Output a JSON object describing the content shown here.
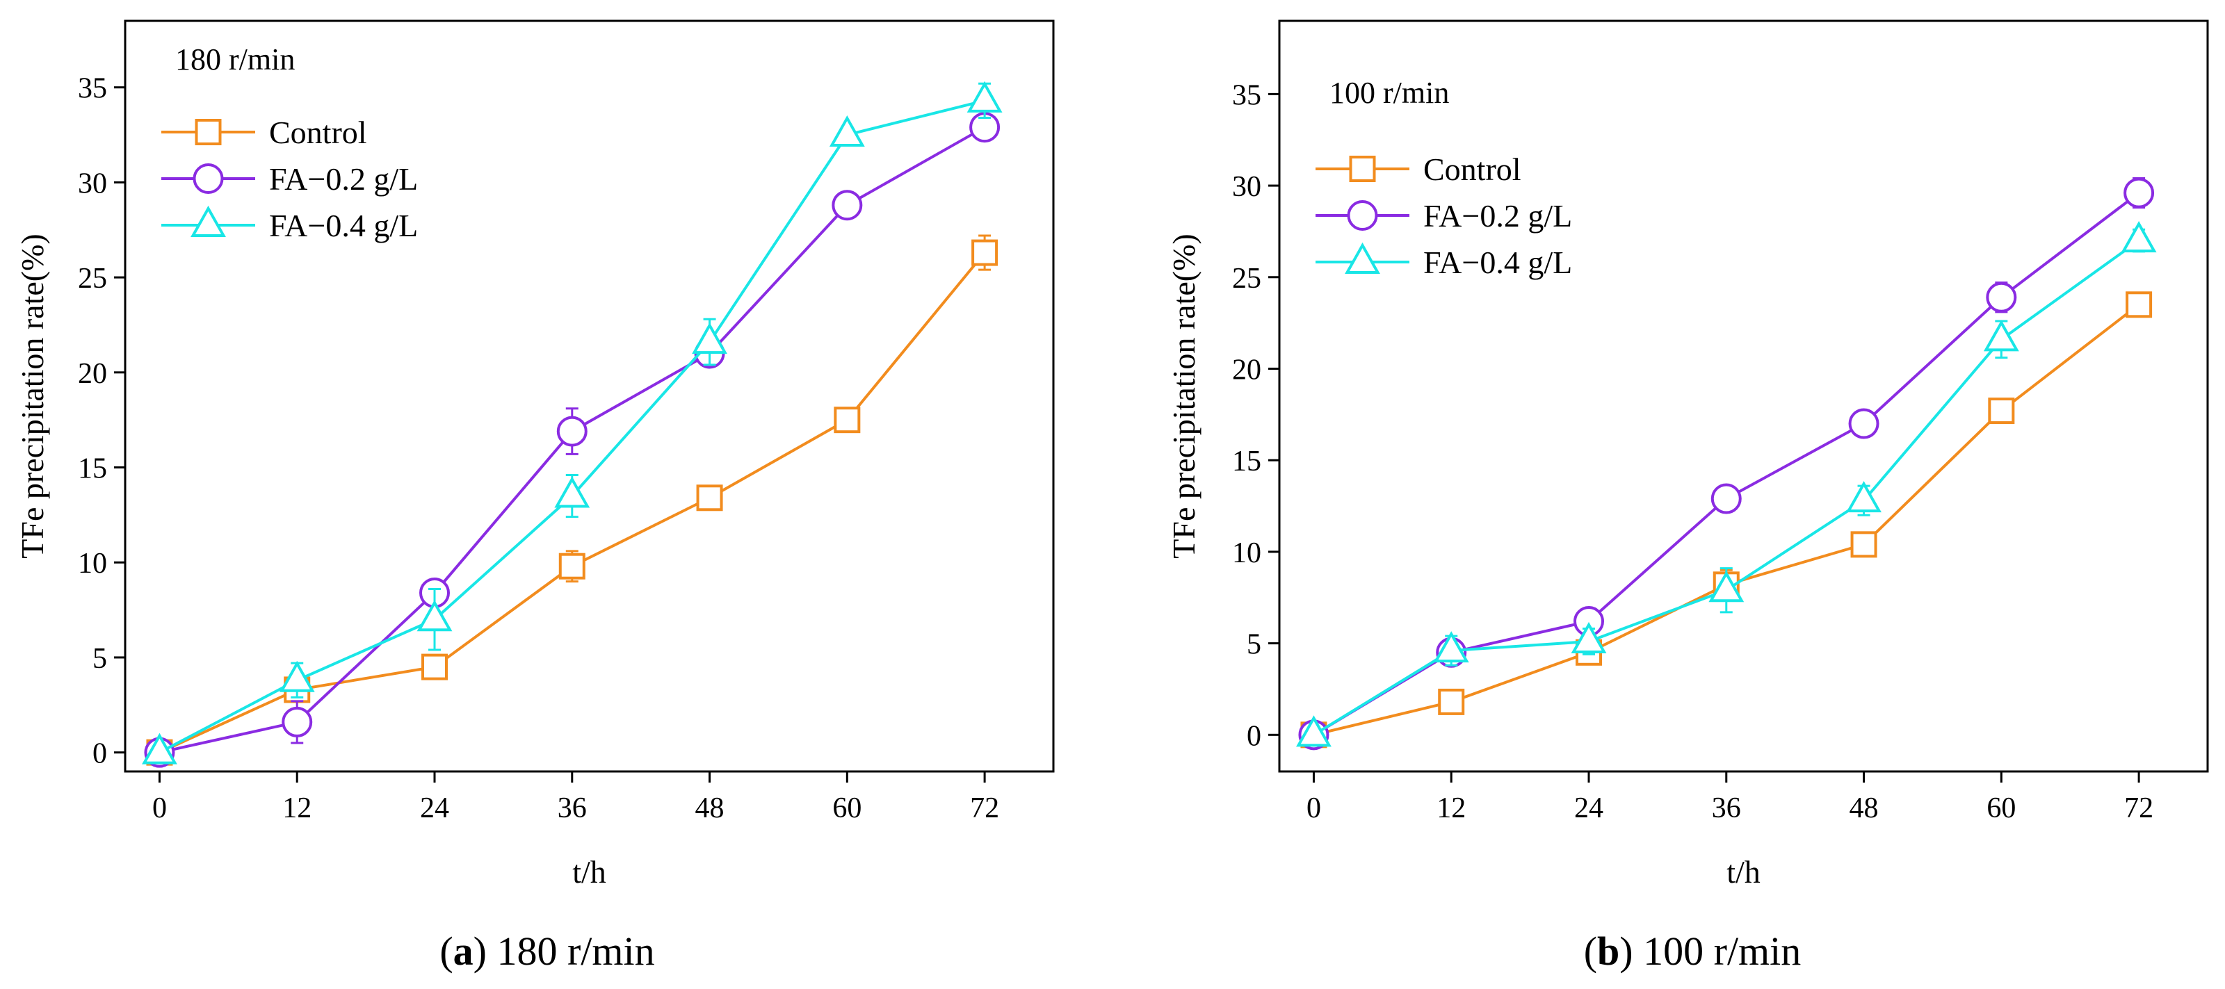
{
  "figure": {
    "captions": [
      {
        "paren_open": "(",
        "letter": "a",
        "paren_close": ")",
        "text": " 180 r/min"
      },
      {
        "paren_open": "(",
        "letter": "b",
        "paren_close": ")",
        "text": " 100 r/min"
      }
    ]
  },
  "chart_data": [
    {
      "type": "line",
      "panel": "a",
      "legend_title": "180 r/min",
      "legend_position": "top-left",
      "xlabel": "t/h",
      "ylabel": "TFe precipitation rate(%)",
      "x": [
        0,
        12,
        24,
        36,
        48,
        60,
        72
      ],
      "xlim": [
        -3,
        78
      ],
      "ylim": [
        -1,
        38.5
      ],
      "xticks": [
        0,
        12,
        24,
        36,
        48,
        60,
        72
      ],
      "yticks": [
        0,
        5,
        10,
        15,
        20,
        25,
        30,
        35
      ],
      "series": [
        {
          "name": "Control",
          "marker": "square",
          "color": "#F28C1E",
          "values": [
            0,
            3.3,
            4.5,
            9.8,
            13.4,
            17.5,
            26.3
          ],
          "errors": [
            0.3,
            0.4,
            0.6,
            0.8,
            0.4,
            0.5,
            0.9
          ]
        },
        {
          "name": "FA−0.2 g/L",
          "marker": "circle",
          "color": "#8A2BE2",
          "values": [
            0,
            1.6,
            8.4,
            16.9,
            21.0,
            28.8,
            32.9
          ],
          "errors": [
            0.3,
            1.1,
            0.5,
            1.2,
            0.6,
            0.6,
            0.6
          ]
        },
        {
          "name": "FA−0.4 g/L",
          "marker": "triangle",
          "color": "#19E6E6",
          "values": [
            0,
            3.8,
            7.0,
            13.5,
            21.6,
            32.5,
            34.3
          ],
          "errors": [
            0.3,
            0.9,
            1.6,
            1.1,
            1.2,
            0.4,
            0.9
          ]
        }
      ]
    },
    {
      "type": "line",
      "panel": "b",
      "legend_title": "100 r/min",
      "legend_position": "top-left",
      "xlabel": "t/h",
      "ylabel": "TFe precipitation rate(%)",
      "x": [
        0,
        12,
        24,
        36,
        48,
        60,
        72
      ],
      "xlim": [
        -3,
        78
      ],
      "ylim": [
        -2,
        39
      ],
      "xticks": [
        0,
        12,
        24,
        36,
        48,
        60,
        72
      ],
      "yticks": [
        0,
        5,
        10,
        15,
        20,
        25,
        30,
        35
      ],
      "series": [
        {
          "name": "Control",
          "marker": "square",
          "color": "#F28C1E",
          "values": [
            0,
            1.8,
            4.5,
            8.2,
            10.4,
            17.7,
            23.5
          ],
          "errors": [
            0.3,
            0.5,
            0.5,
            0.8,
            0.4,
            0.6,
            0.5
          ]
        },
        {
          "name": "FA−0.2 g/L",
          "marker": "circle",
          "color": "#8A2BE2",
          "values": [
            0,
            4.5,
            6.2,
            12.9,
            17.0,
            23.9,
            29.6
          ],
          "errors": [
            0.3,
            0.4,
            0.5,
            0.5,
            0.4,
            0.8,
            0.8
          ]
        },
        {
          "name": "FA−0.4 g/L",
          "marker": "triangle",
          "color": "#19E6E6",
          "values": [
            0,
            4.6,
            5.1,
            7.9,
            12.8,
            21.6,
            27.0
          ],
          "errors": [
            0.3,
            0.8,
            0.7,
            1.2,
            0.8,
            1.0,
            0.6
          ]
        }
      ]
    }
  ]
}
